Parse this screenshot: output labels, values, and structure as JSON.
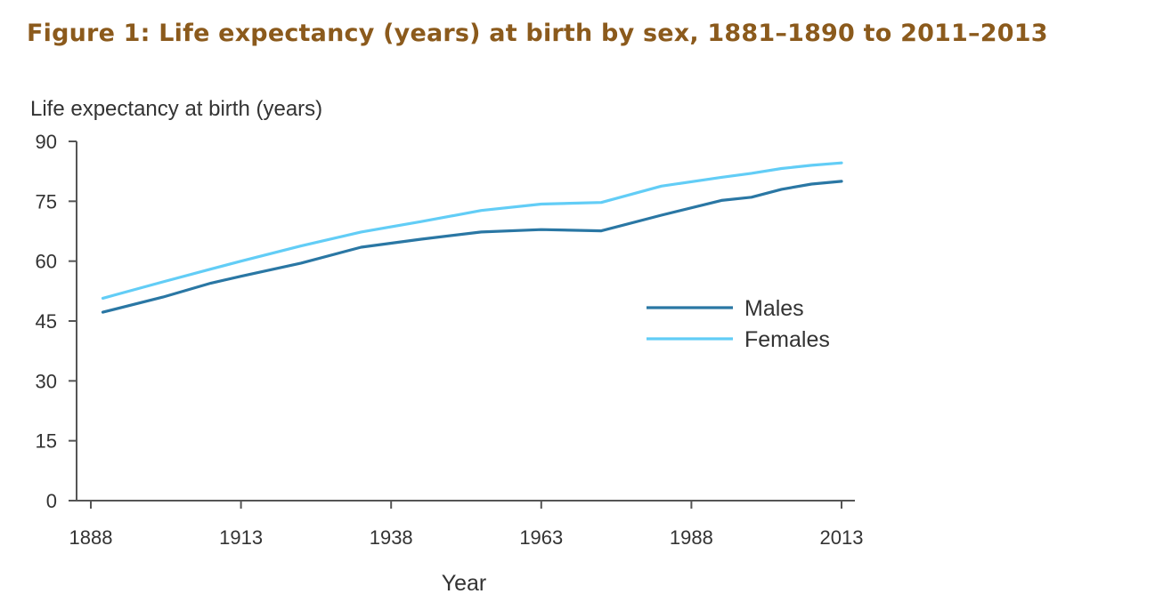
{
  "figure": {
    "title": "Figure 1: Life expectancy (years) at birth by sex, 1881–1890 to 2011–2013"
  },
  "colors": {
    "title": "#8b5a1c",
    "males": "#2a77a4",
    "females": "#62cdf6",
    "axis": "#555555",
    "text": "#333333"
  },
  "chart_data": {
    "type": "line",
    "ylabel": "Life expectancy at birth (years)",
    "xlabel": "Year",
    "ylim": [
      0,
      90
    ],
    "xlim": [
      1888,
      2013
    ],
    "y_ticks": [
      "0",
      "15",
      "30",
      "45",
      "60",
      "75",
      "90"
    ],
    "x_ticks": [
      "1888",
      "1913",
      "1938",
      "1963",
      "1988",
      "2013"
    ],
    "grid": false,
    "legend_position": "center-right",
    "series": [
      {
        "name": "Males",
        "color": "#2a77a4",
        "x": [
          1890,
          1900,
          1908,
          1913,
          1923,
          1933,
          1943,
          1953,
          1963,
          1973,
          1983,
          1993,
          1998,
          2003,
          2008,
          2013
        ],
        "y": [
          47.2,
          51.0,
          54.5,
          56.2,
          59.5,
          63.5,
          65.5,
          67.3,
          67.9,
          67.6,
          71.5,
          75.2,
          76.0,
          78.0,
          79.3,
          80.0
        ]
      },
      {
        "name": "Females",
        "color": "#62cdf6",
        "x": [
          1890,
          1900,
          1908,
          1913,
          1923,
          1933,
          1943,
          1953,
          1963,
          1973,
          1983,
          1993,
          1998,
          2003,
          2008,
          2013
        ],
        "y": [
          50.7,
          54.8,
          58.0,
          60.0,
          63.8,
          67.3,
          69.9,
          72.7,
          74.3,
          74.7,
          78.8,
          81.0,
          82.0,
          83.2,
          84.0,
          84.6
        ]
      }
    ]
  }
}
